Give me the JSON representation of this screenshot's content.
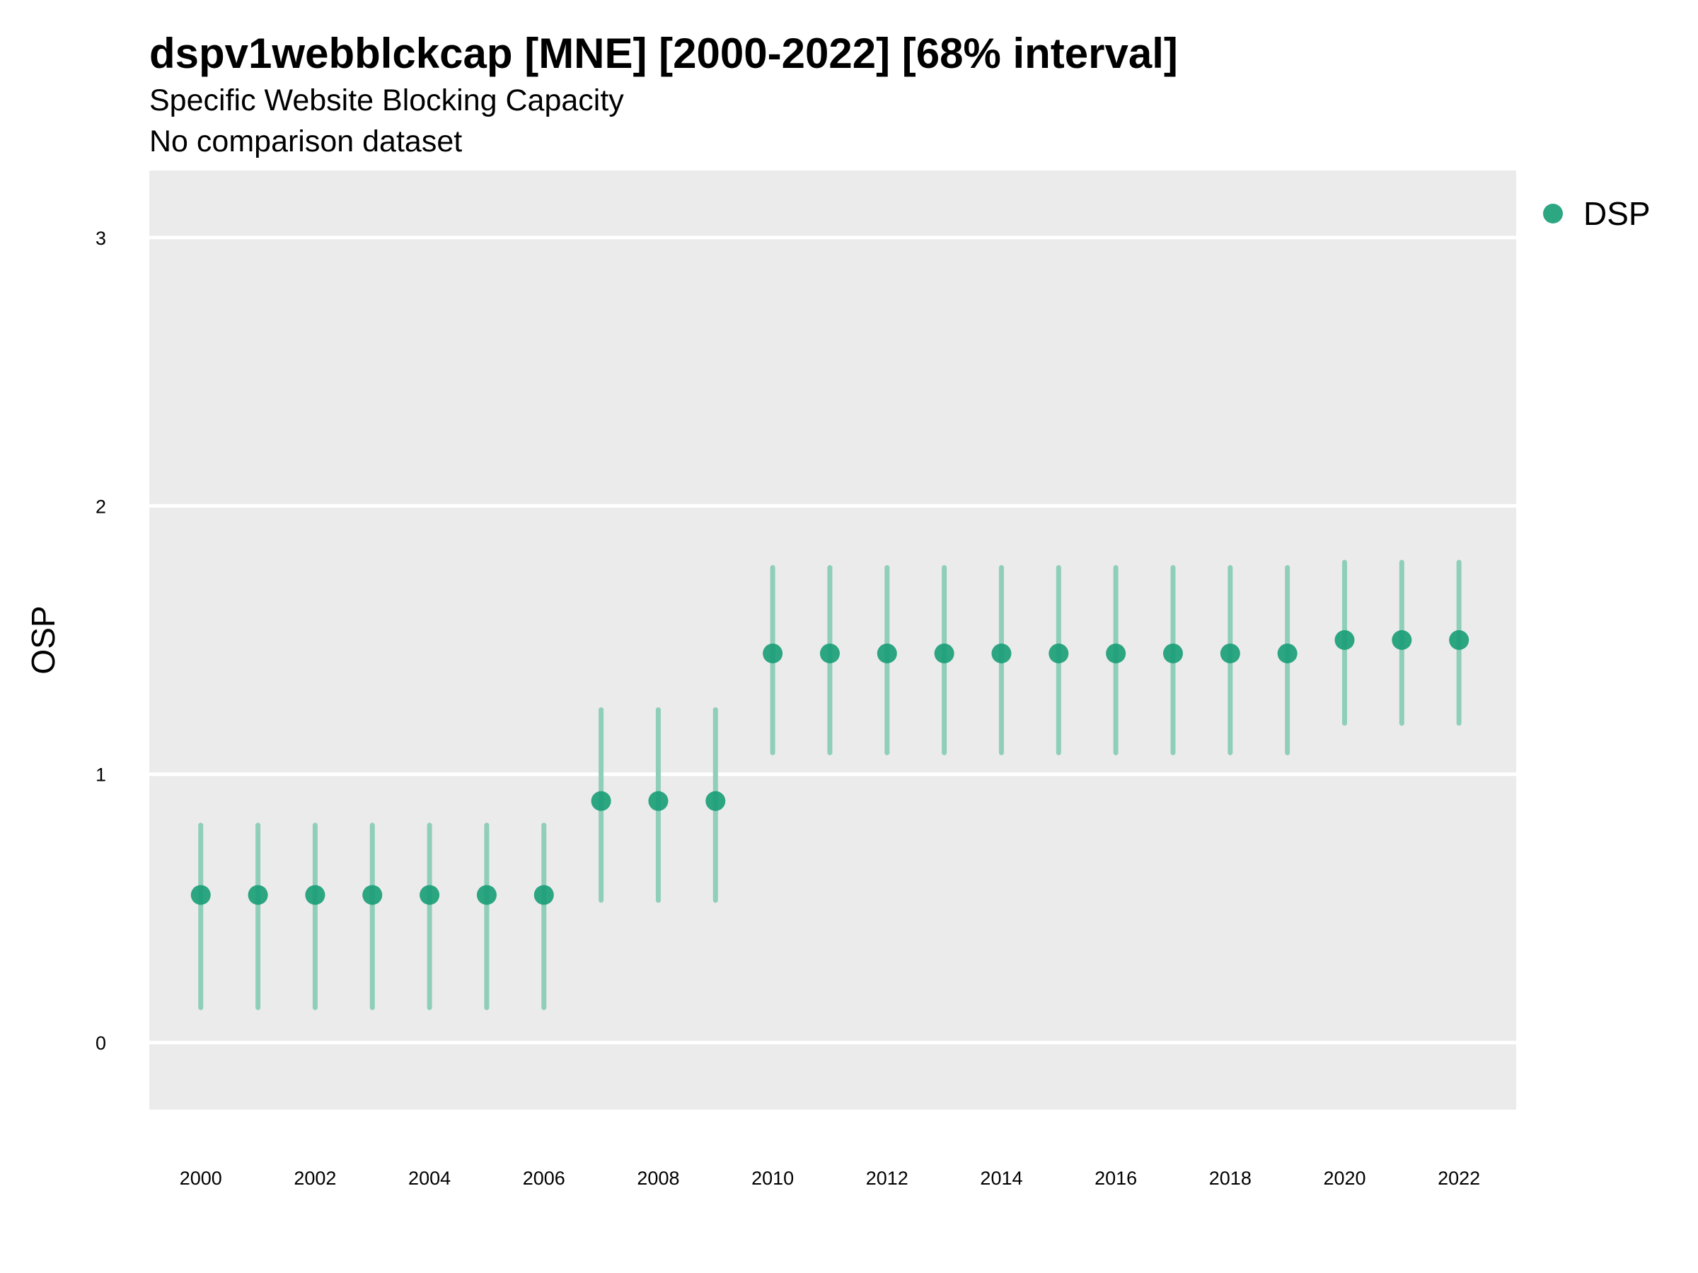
{
  "chart_data": {
    "type": "scatter",
    "title": "dspv1webblckcap [MNE] [2000-2022] [68% interval]",
    "subtitle": "Specific Website Blocking Capacity",
    "subtitle2": "No comparison dataset",
    "xlabel": "",
    "ylabel": "OSP",
    "xlim": [
      1999.1,
      2023.0
    ],
    "ylim": [
      -0.25,
      3.25
    ],
    "xticks": [
      2000,
      2002,
      2004,
      2006,
      2008,
      2010,
      2012,
      2014,
      2016,
      2018,
      2020,
      2022
    ],
    "yticks": [
      0,
      1,
      2,
      3
    ],
    "grid": true,
    "legend_position": "right",
    "colors": {
      "panel_background": "#EBEBEB",
      "grid": "#FFFFFF",
      "point": "#1B9E77",
      "interval": "#8FCFB9"
    },
    "series": [
      {
        "name": "DSP",
        "x": [
          2000,
          2001,
          2002,
          2003,
          2004,
          2005,
          2006,
          2007,
          2008,
          2009,
          2010,
          2011,
          2012,
          2013,
          2014,
          2015,
          2016,
          2017,
          2018,
          2019,
          2020,
          2021,
          2022
        ],
        "y": [
          0.55,
          0.55,
          0.55,
          0.55,
          0.55,
          0.55,
          0.55,
          0.9,
          0.9,
          0.9,
          1.45,
          1.45,
          1.45,
          1.45,
          1.45,
          1.45,
          1.45,
          1.45,
          1.45,
          1.45,
          1.5,
          1.5,
          1.5
        ],
        "lower": [
          0.13,
          0.13,
          0.13,
          0.13,
          0.13,
          0.13,
          0.13,
          0.53,
          0.53,
          0.53,
          1.08,
          1.08,
          1.08,
          1.08,
          1.08,
          1.08,
          1.08,
          1.08,
          1.08,
          1.08,
          1.19,
          1.19,
          1.19
        ],
        "upper": [
          0.81,
          0.81,
          0.81,
          0.81,
          0.81,
          0.81,
          0.81,
          1.24,
          1.24,
          1.24,
          1.77,
          1.77,
          1.77,
          1.77,
          1.77,
          1.77,
          1.77,
          1.77,
          1.77,
          1.77,
          1.79,
          1.79,
          1.79
        ]
      }
    ]
  }
}
